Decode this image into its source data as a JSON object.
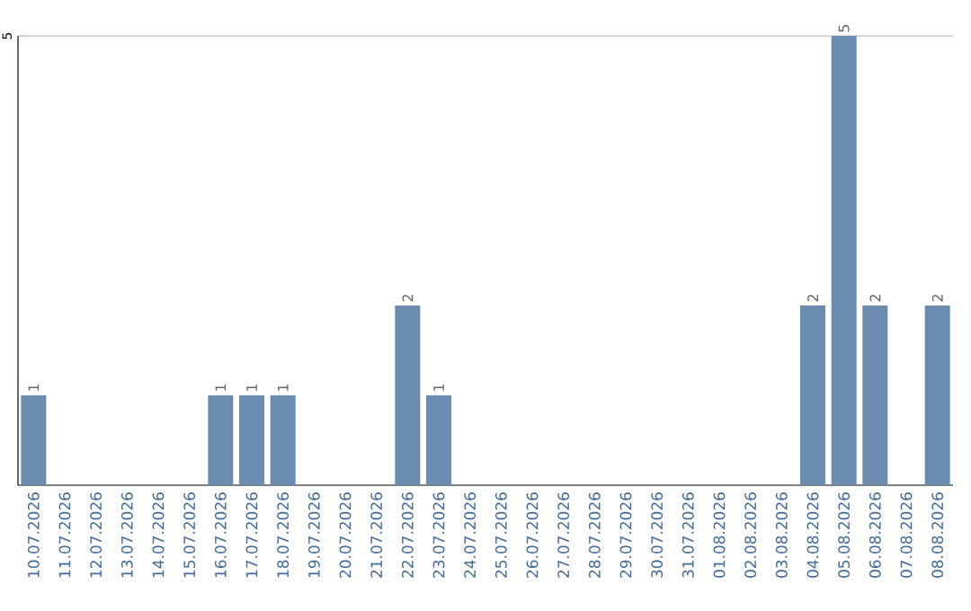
{
  "chart_data": {
    "type": "bar",
    "categories": [
      "10.07.2026",
      "11.07.2026",
      "12.07.2026",
      "13.07.2026",
      "14.07.2026",
      "15.07.2026",
      "16.07.2026",
      "17.07.2026",
      "18.07.2026",
      "19.07.2026",
      "20.07.2026",
      "21.07.2026",
      "22.07.2026",
      "23.07.2026",
      "24.07.2026",
      "25.07.2026",
      "26.07.2026",
      "27.07.2026",
      "28.07.2026",
      "29.07.2026",
      "30.07.2026",
      "31.07.2026",
      "01.08.2026",
      "02.08.2026",
      "03.08.2026",
      "04.08.2026",
      "05.08.2026",
      "06.08.2026",
      "07.08.2026",
      "08.08.2026"
    ],
    "values": [
      1,
      0,
      0,
      0,
      0,
      0,
      1,
      1,
      1,
      0,
      0,
      0,
      2,
      1,
      0,
      0,
      0,
      0,
      0,
      0,
      0,
      0,
      0,
      0,
      0,
      2,
      5,
      2,
      0,
      2
    ],
    "value_labels": [
      "1",
      null,
      null,
      null,
      null,
      null,
      "1",
      "1",
      "1",
      null,
      null,
      null,
      "2",
      "1",
      null,
      null,
      null,
      null,
      null,
      null,
      null,
      null,
      null,
      null,
      null,
      "2",
      "5",
      "2",
      null,
      "2"
    ],
    "color": "#6b8cae",
    "ylim": [
      0,
      5
    ],
    "yticks": [
      5
    ],
    "grid": "y"
  }
}
